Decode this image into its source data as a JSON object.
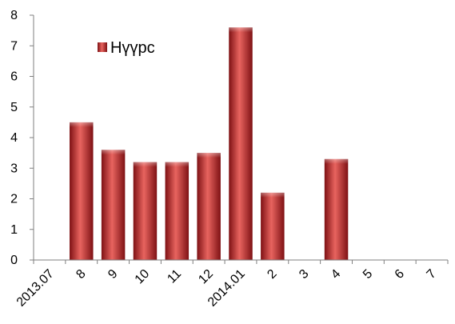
{
  "chart_data": {
    "type": "bar",
    "categories": [
      "2013.07",
      "8",
      "9",
      "10",
      "11",
      "12",
      "2014.01",
      "2",
      "3",
      "4",
      "5",
      "6",
      "7"
    ],
    "series": [
      {
        "name": "Нүүрс",
        "values": [
          0,
          4.5,
          3.6,
          3.2,
          3.2,
          3.5,
          7.6,
          2.2,
          0,
          3.3,
          0,
          0,
          0
        ]
      }
    ],
    "ylim": [
      0,
      8
    ],
    "yticks": [
      0,
      1,
      2,
      3,
      4,
      5,
      6,
      7,
      8
    ],
    "title": "",
    "xlabel": "",
    "ylabel": "",
    "grid": false,
    "legend_position": "top-left",
    "colors": {
      "bar_light": "#e8645f",
      "bar_mid": "#c0262b",
      "bar_dark": "#7e1114",
      "axis": "#7f7f7f"
    }
  }
}
